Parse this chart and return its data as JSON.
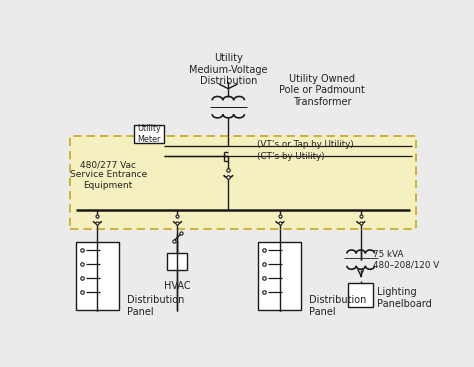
{
  "bg_color": "#ebebeb",
  "box_fill": "#f5f0c0",
  "box_edge": "#c8a820",
  "line_color": "#1a1a1a",
  "text_color": "#222222",
  "labels": {
    "utility_mv": "Utility\nMedium-Voltage\nDistribution",
    "utility_owned": "Utility Owned\nPole or Padmount\nTransformer",
    "utility_meter": "Utility\nMeter",
    "service_entrance": "480/277 Vac\nService Entrance\nEquipment",
    "vt_tap": "(VT’s or Tap by Utility)",
    "ct_utility": "(CT’s by Utility)",
    "hvac": "HVAC",
    "dist_panel": "Distribution\nPanel",
    "lighting": "Lighting\nPanelboard",
    "kva": "75 kVA\n480–208/120 V"
  }
}
